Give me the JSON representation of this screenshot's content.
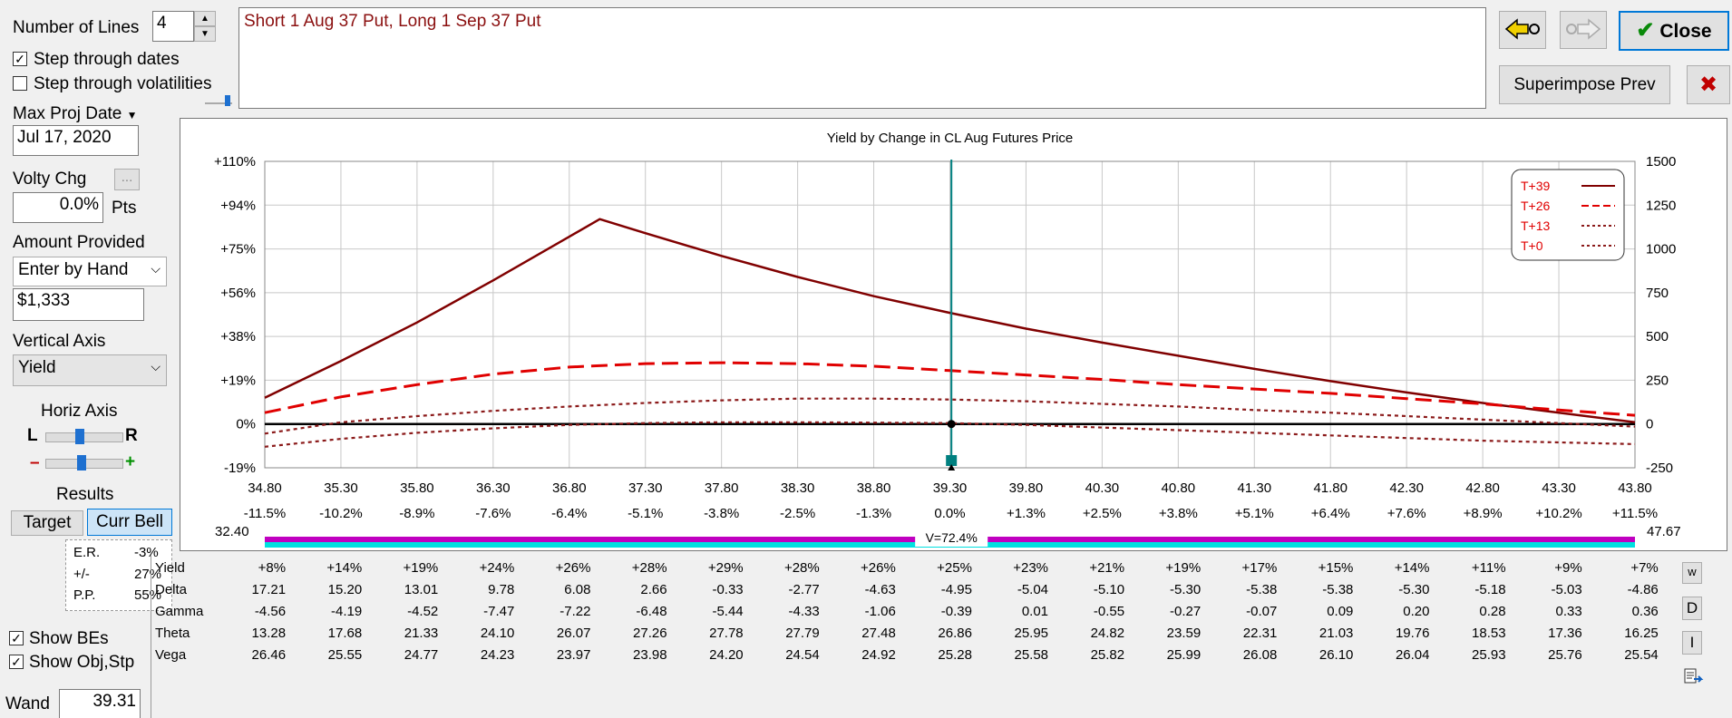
{
  "controls": {
    "number_of_lines_label": "Number of Lines",
    "number_of_lines_value": "4",
    "step_dates_label": "Step through dates",
    "step_dates_checked": "✓",
    "step_vol_label": "Step through volatilities",
    "max_proj_date_label": "Max Proj Date",
    "max_proj_date_value": "Jul 17, 2020",
    "volty_chg_label": "Volty Chg",
    "volty_chg_btn": "...",
    "volty_chg_value": "0.0%",
    "volty_chg_unit": "Pts",
    "amount_provided_label": "Amount Provided",
    "amount_provided_value": "Enter by Hand",
    "amount_value": "$1,333",
    "vertical_axis_label": "Vertical Axis",
    "vertical_axis_value": "Yield",
    "horiz_axis_label": "Horiz Axis",
    "horiz_l": "L",
    "horiz_r": "R",
    "minus": "–",
    "plus": "+",
    "results_label": "Results",
    "tab_target": "Target",
    "tab_curr_bell": "Curr Bell",
    "er_label": "E.R.",
    "er_value": "-3%",
    "pm_label": "+/-",
    "pm_value": "27%",
    "pp_label": "P.P.",
    "pp_value": "55%",
    "show_bes_label": "Show BEs",
    "show_bes_checked": "✓",
    "show_obj_label": "Show Obj,Stp",
    "show_obj_checked": "✓",
    "wand_label": "Wand",
    "wand_value": "39.31"
  },
  "description": "Short 1 Aug 37 Put, Long 1 Sep 37 Put",
  "toolbar": {
    "back_icon": "arrow-left-icon",
    "forward_icon": "arrow-right-icon",
    "close_label": "Close",
    "close_check": "✔",
    "superimpose_label": "Superimpose Prev",
    "cancel_x": "✖"
  },
  "colors": {
    "t39": "#800000",
    "t26": "#e00000",
    "t13": "#8b1a1a",
    "t0": "#8b1a1a",
    "bell_magenta": "#c000c0",
    "bell_cyan": "#00e0e0",
    "wand": "#008080"
  },
  "chart_data": {
    "type": "line",
    "title": "Yield by Change in CL Aug Futures Price",
    "x_ticks": [
      "34.80",
      "35.30",
      "35.80",
      "36.30",
      "36.80",
      "37.30",
      "37.80",
      "38.30",
      "38.80",
      "39.30",
      "39.80",
      "40.30",
      "40.80",
      "41.30",
      "41.80",
      "42.30",
      "42.80",
      "43.30",
      "43.80"
    ],
    "x_pct_ticks": [
      "-11.5%",
      "-10.2%",
      "-8.9%",
      "-7.6%",
      "-6.4%",
      "-5.1%",
      "-3.8%",
      "-2.5%",
      "-1.3%",
      "0.0%",
      "+1.3%",
      "+2.5%",
      "+3.8%",
      "+5.1%",
      "+6.4%",
      "+7.6%",
      "+8.9%",
      "+10.2%",
      "+11.5%"
    ],
    "y_left_ticks": [
      "+110%",
      "+94%",
      "+75%",
      "+56%",
      "+38%",
      "+19%",
      "0%",
      "-19%"
    ],
    "y_right_ticks": [
      "1500",
      "1250",
      "1000",
      "750",
      "500",
      "250",
      "0",
      "-250"
    ],
    "ylim": [
      -250,
      1500
    ],
    "xlim": [
      34.8,
      43.8
    ],
    "range_low": "32.40",
    "range_high": "47.67",
    "bell_label": "V=72.4%",
    "wand_x": 39.31,
    "legend": [
      "T+39",
      "T+26",
      "T+13",
      "T+0"
    ],
    "series": [
      {
        "name": "T+39",
        "x": [
          34.8,
          35.3,
          35.8,
          36.3,
          36.8,
          37.0,
          37.3,
          37.8,
          38.3,
          38.8,
          39.3,
          39.8,
          40.3,
          40.8,
          41.3,
          41.8,
          42.3,
          42.8,
          43.3,
          43.8
        ],
        "values": [
          150,
          360,
          580,
          820,
          1070,
          1170,
          1090,
          960,
          840,
          730,
          635,
          545,
          465,
          390,
          315,
          245,
          180,
          120,
          65,
          10
        ]
      },
      {
        "name": "T+26",
        "x": [
          34.8,
          35.3,
          35.8,
          36.3,
          36.8,
          37.3,
          37.8,
          38.3,
          38.8,
          39.3,
          39.8,
          40.3,
          40.8,
          41.3,
          41.8,
          42.3,
          42.8,
          43.3,
          43.8
        ],
        "values": [
          65,
          155,
          225,
          285,
          325,
          345,
          350,
          345,
          330,
          305,
          280,
          255,
          225,
          200,
          175,
          145,
          115,
          80,
          50
        ]
      },
      {
        "name": "T+13",
        "x": [
          34.8,
          35.3,
          35.8,
          36.3,
          36.8,
          37.3,
          37.8,
          38.3,
          38.8,
          39.3,
          39.8,
          40.3,
          40.8,
          41.3,
          41.8,
          42.3,
          42.8,
          43.3,
          43.8
        ],
        "values": [
          -55,
          10,
          45,
          75,
          100,
          120,
          135,
          145,
          145,
          140,
          130,
          115,
          100,
          80,
          65,
          45,
          25,
          5,
          -15
        ]
      },
      {
        "name": "T+0",
        "x": [
          34.8,
          35.3,
          35.8,
          36.3,
          36.8,
          37.3,
          37.8,
          38.3,
          38.8,
          39.3,
          39.8,
          40.3,
          40.8,
          41.3,
          41.8,
          42.3,
          42.8,
          43.3,
          43.8
        ],
        "values": [
          -130,
          -85,
          -50,
          -25,
          -5,
          5,
          10,
          10,
          8,
          5,
          -5,
          -20,
          -35,
          -50,
          -65,
          -80,
          -95,
          -105,
          -115
        ]
      }
    ]
  },
  "greeks": {
    "rows": [
      {
        "name": "Yield",
        "values": [
          "+8%",
          "+14%",
          "+19%",
          "+24%",
          "+26%",
          "+28%",
          "+29%",
          "+28%",
          "+26%",
          "+25%",
          "+23%",
          "+21%",
          "+19%",
          "+17%",
          "+15%",
          "+14%",
          "+11%",
          "+9%",
          "+7%"
        ]
      },
      {
        "name": "Delta",
        "values": [
          "17.21",
          "15.20",
          "13.01",
          "9.78",
          "6.08",
          "2.66",
          "-0.33",
          "-2.77",
          "-4.63",
          "-4.95",
          "-5.04",
          "-5.10",
          "-5.30",
          "-5.38",
          "-5.38",
          "-5.30",
          "-5.18",
          "-5.03",
          "-4.86"
        ]
      },
      {
        "name": "Gamma",
        "values": [
          "-4.56",
          "-4.19",
          "-4.52",
          "-7.47",
          "-7.22",
          "-6.48",
          "-5.44",
          "-4.33",
          "-1.06",
          "-0.39",
          "0.01",
          "-0.55",
          "-0.27",
          "-0.07",
          "0.09",
          "0.20",
          "0.28",
          "0.33",
          "0.36"
        ]
      },
      {
        "name": "Theta",
        "values": [
          "13.28",
          "17.68",
          "21.33",
          "24.10",
          "26.07",
          "27.26",
          "27.78",
          "27.79",
          "27.48",
          "26.86",
          "25.95",
          "24.82",
          "23.59",
          "22.31",
          "21.03",
          "19.76",
          "18.53",
          "17.36",
          "16.25"
        ]
      },
      {
        "name": "Vega",
        "values": [
          "26.46",
          "25.55",
          "24.77",
          "24.23",
          "23.97",
          "23.98",
          "24.20",
          "24.54",
          "24.92",
          "25.28",
          "25.58",
          "25.82",
          "25.99",
          "26.08",
          "26.10",
          "26.04",
          "25.93",
          "25.76",
          "25.54"
        ]
      }
    ],
    "side_btn_w": "w",
    "side_btn_d": "D",
    "side_btn_i": "I",
    "side_icon": "clipboard-icon"
  }
}
